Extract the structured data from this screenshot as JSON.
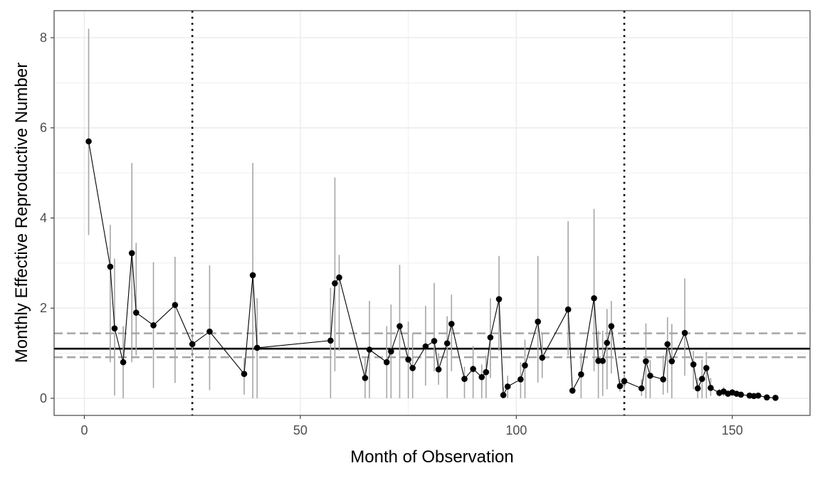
{
  "chart_data": {
    "type": "scatter",
    "title": "",
    "xlabel": "Month of Observation",
    "ylabel": "Monthly Effective Reproductive Number",
    "xlim": [
      -7,
      168
    ],
    "ylim": [
      -0.38,
      8.6
    ],
    "x_ticks": [
      0,
      50,
      100,
      150
    ],
    "y_ticks": [
      0,
      2,
      4,
      6,
      8
    ],
    "x_tick_labels": [
      "0",
      "50",
      "100",
      "150"
    ],
    "y_tick_labels": [
      "0",
      "2",
      "4",
      "6",
      "8"
    ],
    "grid": true,
    "legend": "none",
    "colors": {
      "points": "#000000",
      "line": "#000000",
      "error_bars": "#a6a6a6",
      "reference_line": "#000000",
      "reference_band": "#a6a6a6",
      "vertical_markers": "#000000",
      "grid": "#ebebeb",
      "panel_border": "#333333"
    },
    "reference_lines": {
      "mean": 1.1,
      "lower": 0.91,
      "upper": 1.44,
      "vertical": [
        25,
        125
      ]
    },
    "series": [
      {
        "x": [
          1,
          6,
          7,
          9,
          11,
          12,
          16,
          21,
          25,
          29,
          37,
          39,
          40,
          57,
          58,
          59,
          65,
          66,
          70,
          71,
          73,
          75,
          76,
          79,
          81,
          82,
          84,
          85,
          88,
          90,
          92,
          93,
          94,
          96,
          97,
          98,
          101,
          102,
          105,
          106,
          112,
          113,
          115,
          118,
          119,
          120,
          121,
          122,
          124,
          125,
          129,
          130,
          131,
          134,
          135,
          136,
          139,
          141,
          142,
          143,
          144,
          145,
          147,
          148,
          149,
          150,
          151,
          152,
          154,
          155,
          156,
          158,
          160
        ],
        "y": [
          5.7,
          2.92,
          1.55,
          0.8,
          3.22,
          1.9,
          1.62,
          2.07,
          1.2,
          1.48,
          0.54,
          2.73,
          1.12,
          1.28,
          2.55,
          2.68,
          0.45,
          1.08,
          0.8,
          1.04,
          1.6,
          0.86,
          0.67,
          1.15,
          1.27,
          0.64,
          1.22,
          1.65,
          0.43,
          0.65,
          0.47,
          0.58,
          1.35,
          2.2,
          0.07,
          0.26,
          0.42,
          0.73,
          1.7,
          0.9,
          1.97,
          0.17,
          0.53,
          2.22,
          0.83,
          0.83,
          1.23,
          1.6,
          0.27,
          0.38,
          0.22,
          0.82,
          0.5,
          0.42,
          1.2,
          0.82,
          1.45,
          0.75,
          0.22,
          0.43,
          0.67,
          0.23,
          0.12,
          0.15,
          0.1,
          0.13,
          0.1,
          0.08,
          0.06,
          0.05,
          0.06,
          0.02,
          0.01
        ],
        "lower": [
          3.62,
          0.8,
          0.06,
          0.0,
          0.8,
          0.95,
          0.23,
          0.34,
          0.9,
          0.18,
          0.08,
          0.0,
          0.0,
          0.0,
          0.6,
          1.05,
          0.0,
          0.0,
          0.0,
          0.0,
          0.0,
          0.0,
          0.0,
          0.28,
          0.6,
          0.3,
          0.0,
          0.6,
          0.0,
          0.0,
          0.0,
          0.0,
          0.45,
          1.05,
          0.0,
          0.0,
          0.0,
          0.0,
          0.35,
          0.45,
          0.95,
          0.1,
          0.0,
          0.6,
          0.0,
          0.05,
          0.2,
          0.55,
          0.15,
          0.2,
          0.05,
          0.0,
          0.0,
          0.08,
          0.12,
          0.0,
          0.5,
          0.2,
          0.0,
          0.0,
          0.0,
          0.05,
          0.04,
          0.05,
          0.04,
          0.05,
          0.04,
          0.03,
          0.02,
          0.02,
          0.02,
          0.0,
          0.0
        ],
        "upper": [
          8.2,
          3.85,
          3.1,
          1.6,
          5.22,
          3.45,
          3.02,
          3.14,
          1.5,
          2.95,
          0.9,
          5.22,
          2.22,
          2.45,
          4.9,
          3.18,
          0.92,
          2.16,
          1.6,
          2.08,
          2.96,
          1.7,
          1.45,
          2.05,
          2.56,
          1.0,
          1.82,
          2.3,
          0.7,
          1.16,
          0.75,
          0.95,
          2.22,
          3.16,
          0.25,
          0.5,
          0.8,
          1.3,
          3.16,
          1.45,
          3.93,
          0.22,
          1.0,
          4.2,
          1.5,
          1.5,
          1.98,
          2.16,
          0.4,
          0.55,
          0.42,
          1.66,
          0.85,
          0.95,
          1.8,
          1.65,
          2.66,
          1.05,
          0.45,
          0.86,
          1.03,
          0.45,
          0.2,
          0.25,
          0.18,
          0.2,
          0.15,
          0.12,
          0.09,
          0.09,
          0.09,
          0.04,
          0.03
        ]
      }
    ]
  }
}
